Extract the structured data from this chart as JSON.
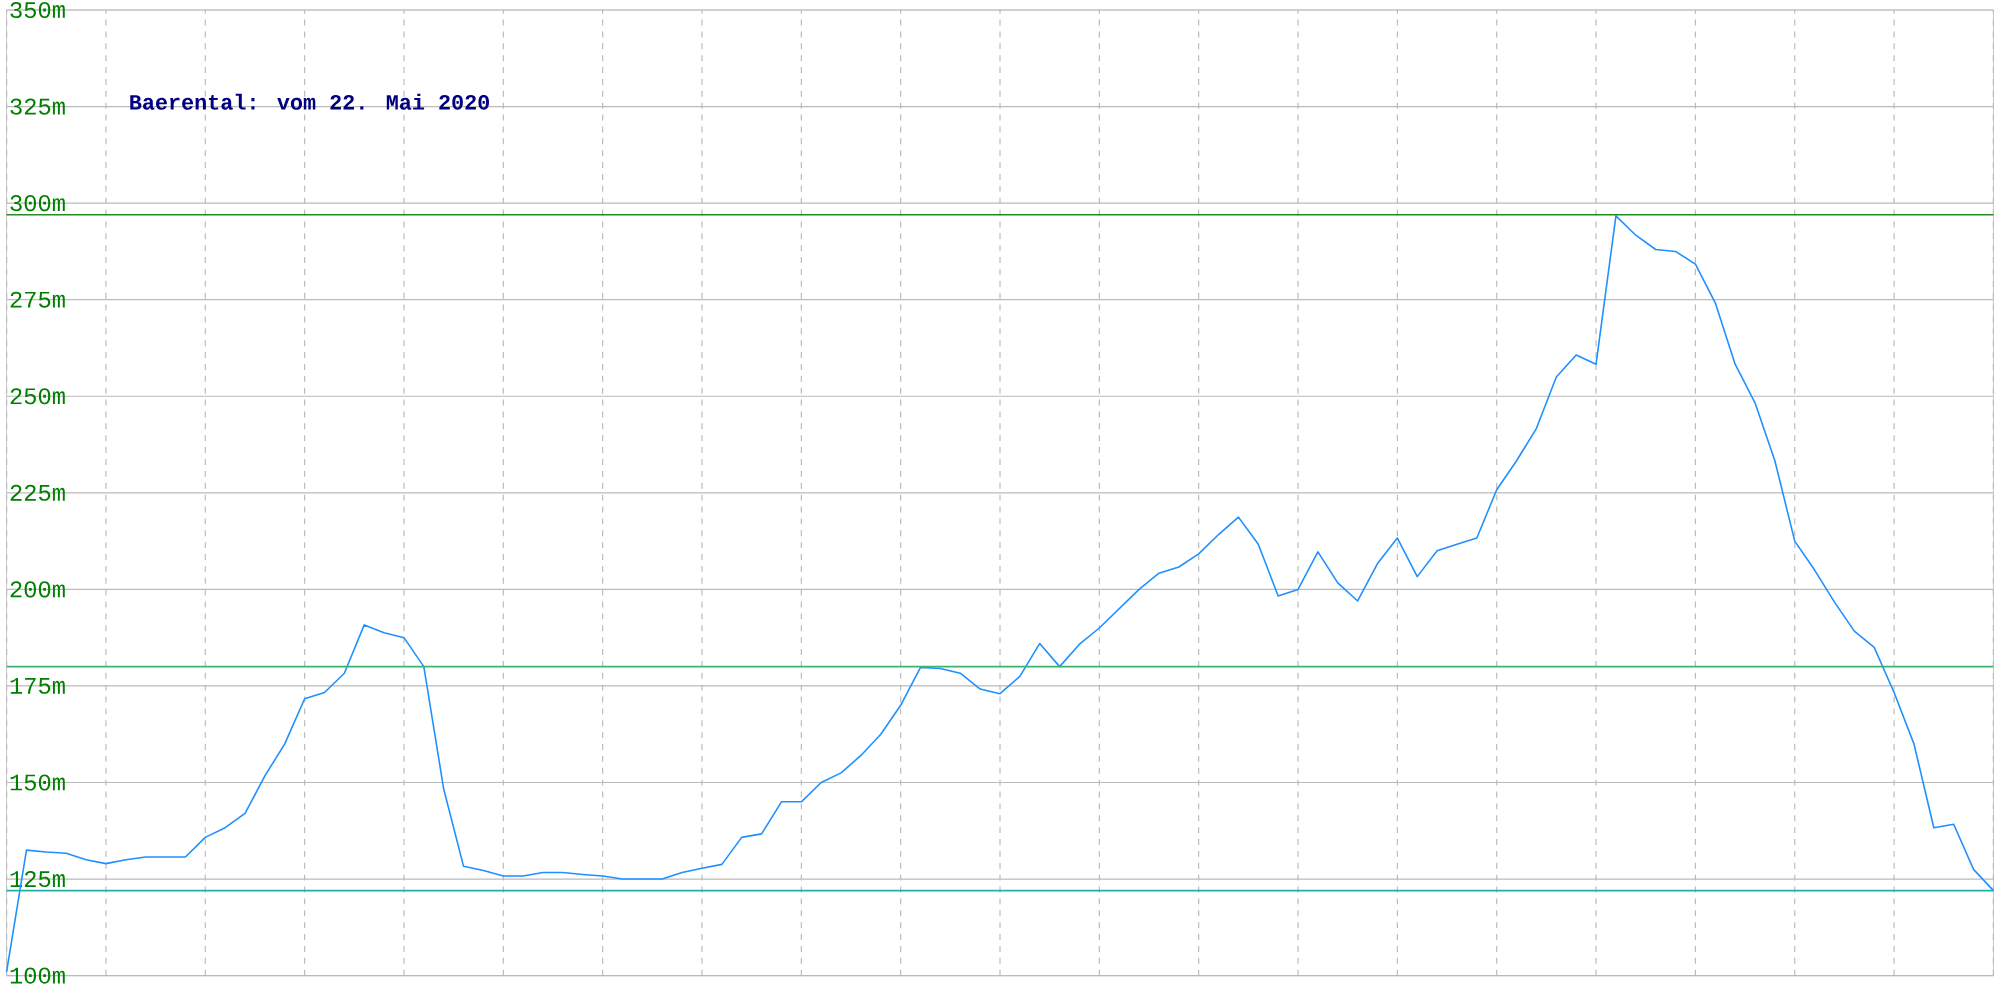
{
  "chart_data": {
    "type": "line",
    "title": "Baerental: vom 22. Mai 2020",
    "categories": [
      null,
      null,
      null,
      null,
      null,
      null,
      null,
      null,
      null,
      null,
      null,
      null,
      null,
      null,
      null,
      null,
      null,
      null,
      null,
      null,
      null,
      null,
      null,
      null,
      null,
      null,
      null,
      null,
      null,
      null,
      null,
      null,
      null,
      null,
      null,
      null,
      null,
      null,
      null,
      null,
      null,
      null,
      null,
      null,
      null,
      null,
      null,
      null,
      null,
      null,
      null,
      null,
      null,
      null,
      null,
      null,
      null,
      null,
      null,
      null,
      null,
      null,
      null,
      null,
      null,
      null,
      null,
      null,
      null,
      null,
      null,
      null,
      null,
      null,
      null,
      null,
      null,
      null,
      null,
      null,
      null,
      null,
      null,
      null,
      null,
      null,
      null,
      null,
      null,
      null,
      null,
      null,
      null,
      null,
      null,
      null,
      null,
      null,
      null,
      null,
      null
    ],
    "series": [
      {
        "color": "#1e90ff",
        "values": [
          101,
          132.5,
          132,
          131.7,
          130,
          129,
          130,
          130.7,
          130.7,
          130.7,
          135.8,
          138.3,
          142,
          151.7,
          160,
          171.7,
          173.3,
          178.3,
          190.8,
          188.8,
          187.5,
          180,
          148.3,
          128.3,
          127.2,
          125.8,
          125.8,
          126.7,
          126.7,
          126.2,
          125.8,
          125,
          125,
          125,
          126.7,
          127.8,
          128.8,
          135.8,
          136.7,
          145,
          145,
          150,
          152.5,
          157,
          162.5,
          170,
          179.8,
          179.5,
          178.3,
          174.2,
          173,
          177.5,
          186,
          180,
          185.8,
          190,
          195,
          200,
          204.2,
          205.8,
          209.2,
          214.2,
          218.7,
          211.7,
          198.3,
          200,
          209.7,
          201.7,
          197,
          206.7,
          213.3,
          203.3,
          210,
          211.7,
          213.3,
          225.8,
          233.3,
          241.7,
          255,
          260.7,
          258.3,
          296.7,
          291.7,
          288,
          287.5,
          284.2,
          274.2,
          258.3,
          248.3,
          233.3,
          212.5,
          205,
          196.7,
          189.2,
          185,
          173.3,
          160,
          138.3,
          139.2,
          127.5,
          122
        ]
      }
    ],
    "ylim": [
      100,
      350
    ],
    "yticks": [
      {
        "value": 100,
        "label": "100m"
      },
      {
        "value": 125,
        "label": "125m"
      },
      {
        "value": 150,
        "label": "150m"
      },
      {
        "value": 175,
        "label": "175m"
      },
      {
        "value": 200,
        "label": "200m"
      },
      {
        "value": 225,
        "label": "225m"
      },
      {
        "value": 250,
        "label": "250m"
      },
      {
        "value": 275,
        "label": "275m"
      },
      {
        "value": 300,
        "label": "300m"
      },
      {
        "value": 325,
        "label": "325m"
      },
      {
        "value": 350,
        "label": "350m"
      }
    ],
    "ref_lines": [
      {
        "axis": "y",
        "value": 297,
        "color": "#228b22"
      },
      {
        "axis": "y",
        "value": 180,
        "color": "#3cb371"
      },
      {
        "axis": "y",
        "value": 122,
        "color": "#20b2aa"
      }
    ],
    "grid": true,
    "marker": "none",
    "line_style": "solid"
  }
}
